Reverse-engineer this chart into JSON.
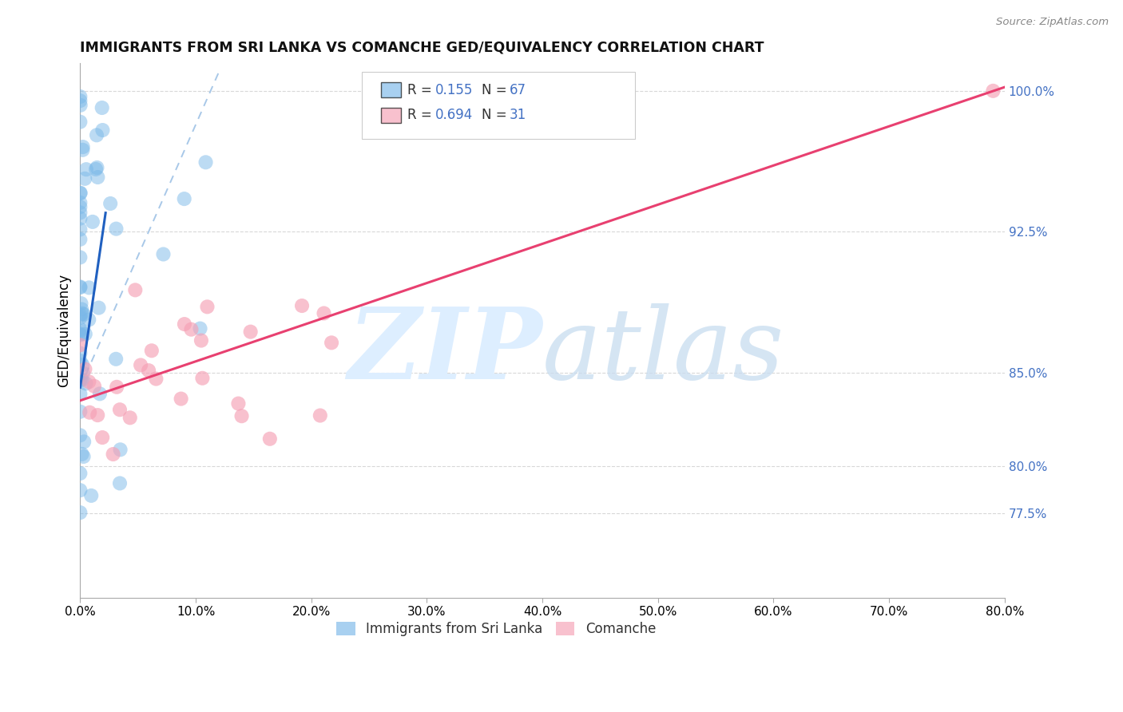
{
  "title": "IMMIGRANTS FROM SRI LANKA VS COMANCHE GED/EQUIVALENCY CORRELATION CHART",
  "source": "Source: ZipAtlas.com",
  "xmin": 0.0,
  "xmax": 80.0,
  "ymin": 73.0,
  "ymax": 101.5,
  "ylabel": "GED/Equivalency",
  "grid_y": [
    77.5,
    80.0,
    85.0,
    92.5,
    100.0
  ],
  "right_ytick_labels": [
    "100.0%",
    "92.5%",
    "85.0%",
    "80.0%",
    "77.5%"
  ],
  "right_ytick_vals": [
    100.0,
    92.5,
    85.0,
    80.0,
    77.5
  ],
  "xtick_vals": [
    0.0,
    10.0,
    20.0,
    30.0,
    40.0,
    50.0,
    60.0,
    70.0,
    80.0
  ],
  "sri_lanka_color": "#7ab8e8",
  "comanche_color": "#f5a0b5",
  "sri_lanka_line_color": "#2060c0",
  "comanche_line_color": "#e84070",
  "dashed_line_color": "#a8c8e8",
  "r_n_color": "#4472c4",
  "label1": "Immigrants from Sri Lanka",
  "label2": "Comanche",
  "sl_line_x0": 0.0,
  "sl_line_y0": 84.2,
  "sl_line_x1": 2.2,
  "sl_line_y1": 93.5,
  "sl_dash_x0": 0.0,
  "sl_dash_y0": 84.2,
  "sl_dash_x1": 12.0,
  "sl_dash_y1": 101.0,
  "co_line_x0": 0.0,
  "co_line_y0": 83.5,
  "co_line_x1": 80.0,
  "co_line_y1": 100.2
}
